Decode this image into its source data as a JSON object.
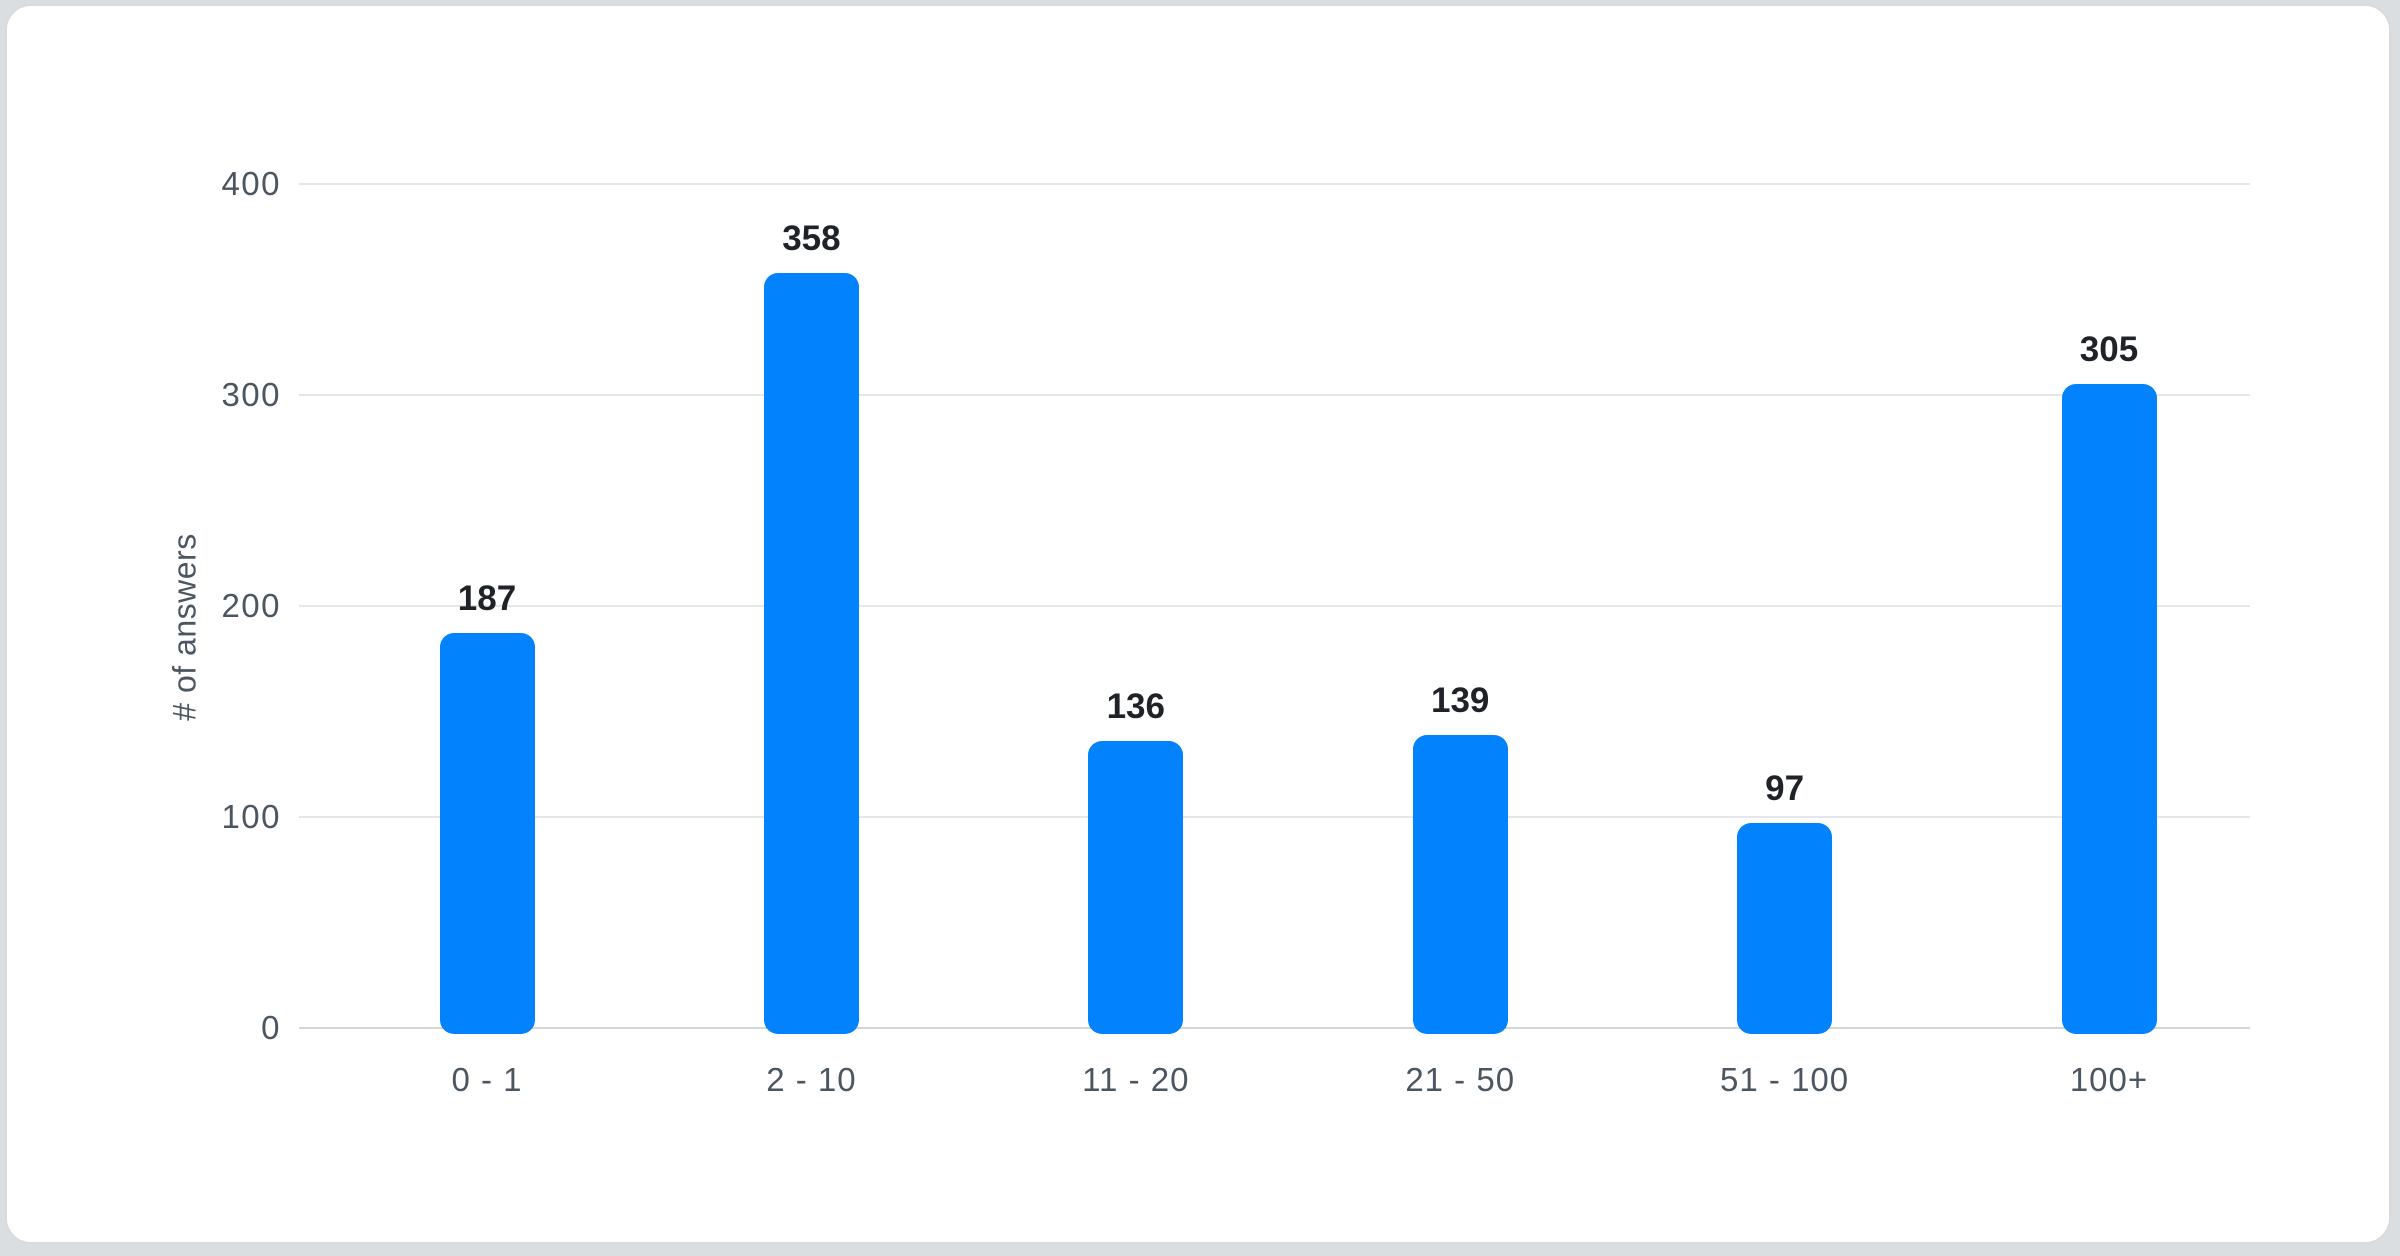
{
  "window": {
    "background_color": "#dbdee1",
    "card_background_color": "#ffffff",
    "card_border_color": "#d8dbde"
  },
  "chart_data": {
    "type": "bar",
    "title": "",
    "xlabel": "",
    "ylabel": "# of answers",
    "categories": [
      "0 - 1",
      "2 - 10",
      "11 - 20",
      "21 - 50",
      "51 - 100",
      "100+"
    ],
    "values": [
      187,
      358,
      136,
      139,
      97,
      305
    ],
    "ylim": [
      0,
      400
    ],
    "yticks": [
      0,
      100,
      200,
      300,
      400
    ],
    "grid": true,
    "legend": "none",
    "bar_color": "#0282fc",
    "value_label_color": "#1f2328",
    "axis_text_color": "#4b5661",
    "gridline_color": "#e4e6e9",
    "zero_line_color": "#d2d6d9"
  }
}
